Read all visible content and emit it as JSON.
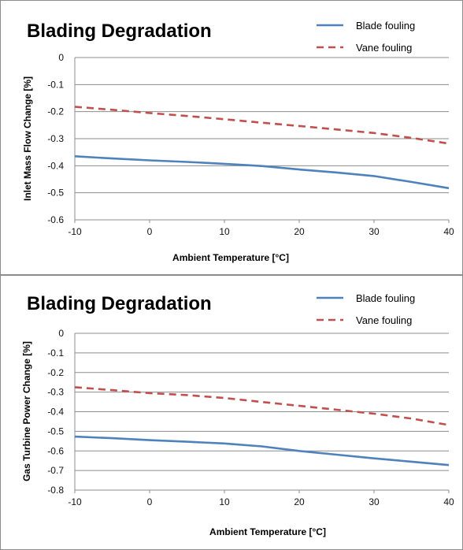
{
  "chart_data": [
    {
      "type": "line",
      "title": "Blading Degradation",
      "xlabel": "Ambient Temperature  [°C]",
      "ylabel": "Inlet Mass Flow Change  [%]",
      "x": [
        -10,
        -5,
        0,
        5,
        10,
        15,
        20,
        25,
        30,
        35,
        40
      ],
      "xlim": [
        -10,
        40
      ],
      "ylim": [
        -0.6,
        0
      ],
      "xticks": [
        "-10",
        "0",
        "10",
        "20",
        "30",
        "40"
      ],
      "yticks": [
        "0",
        "-0.1",
        "-0.2",
        "-0.3",
        "-0.4",
        "-0.5",
        "-0.6"
      ],
      "grid": true,
      "legend_position": "top-right",
      "series": [
        {
          "name": "Blade fouling",
          "color": "#4f81bd",
          "dash": "solid",
          "values": [
            -0.365,
            -0.373,
            -0.38,
            -0.386,
            -0.393,
            -0.401,
            -0.414,
            -0.425,
            -0.438,
            -0.46,
            -0.483
          ]
        },
        {
          "name": "Vane fouling",
          "color": "#c0504d",
          "dash": "dashed",
          "values": [
            -0.182,
            -0.193,
            -0.205,
            -0.216,
            -0.228,
            -0.241,
            -0.253,
            -0.266,
            -0.279,
            -0.297,
            -0.318
          ]
        }
      ]
    },
    {
      "type": "line",
      "title": "Blading Degradation",
      "xlabel": "Ambient Temperature  [°C]",
      "ylabel": "Gas Turbine Power Change  [%]",
      "x": [
        -10,
        -5,
        0,
        5,
        10,
        15,
        20,
        25,
        30,
        35,
        40
      ],
      "xlim": [
        -10,
        40
      ],
      "ylim": [
        -0.8,
        0
      ],
      "xticks": [
        "-10",
        "0",
        "10",
        "20",
        "30",
        "40"
      ],
      "yticks": [
        "0",
        "-0.1",
        "-0.2",
        "-0.3",
        "-0.4",
        "-0.5",
        "-0.6",
        "-0.7",
        "-0.8"
      ],
      "grid": true,
      "legend_position": "top-right",
      "series": [
        {
          "name": "Blade fouling",
          "color": "#4f81bd",
          "dash": "solid",
          "values": [
            -0.527,
            -0.535,
            -0.545,
            -0.553,
            -0.562,
            -0.577,
            -0.6,
            -0.619,
            -0.638,
            -0.655,
            -0.672
          ]
        },
        {
          "name": "Vane fouling",
          "color": "#c0504d",
          "dash": "dashed",
          "values": [
            -0.275,
            -0.29,
            -0.305,
            -0.315,
            -0.33,
            -0.35,
            -0.37,
            -0.39,
            -0.41,
            -0.435,
            -0.468
          ]
        }
      ]
    }
  ]
}
